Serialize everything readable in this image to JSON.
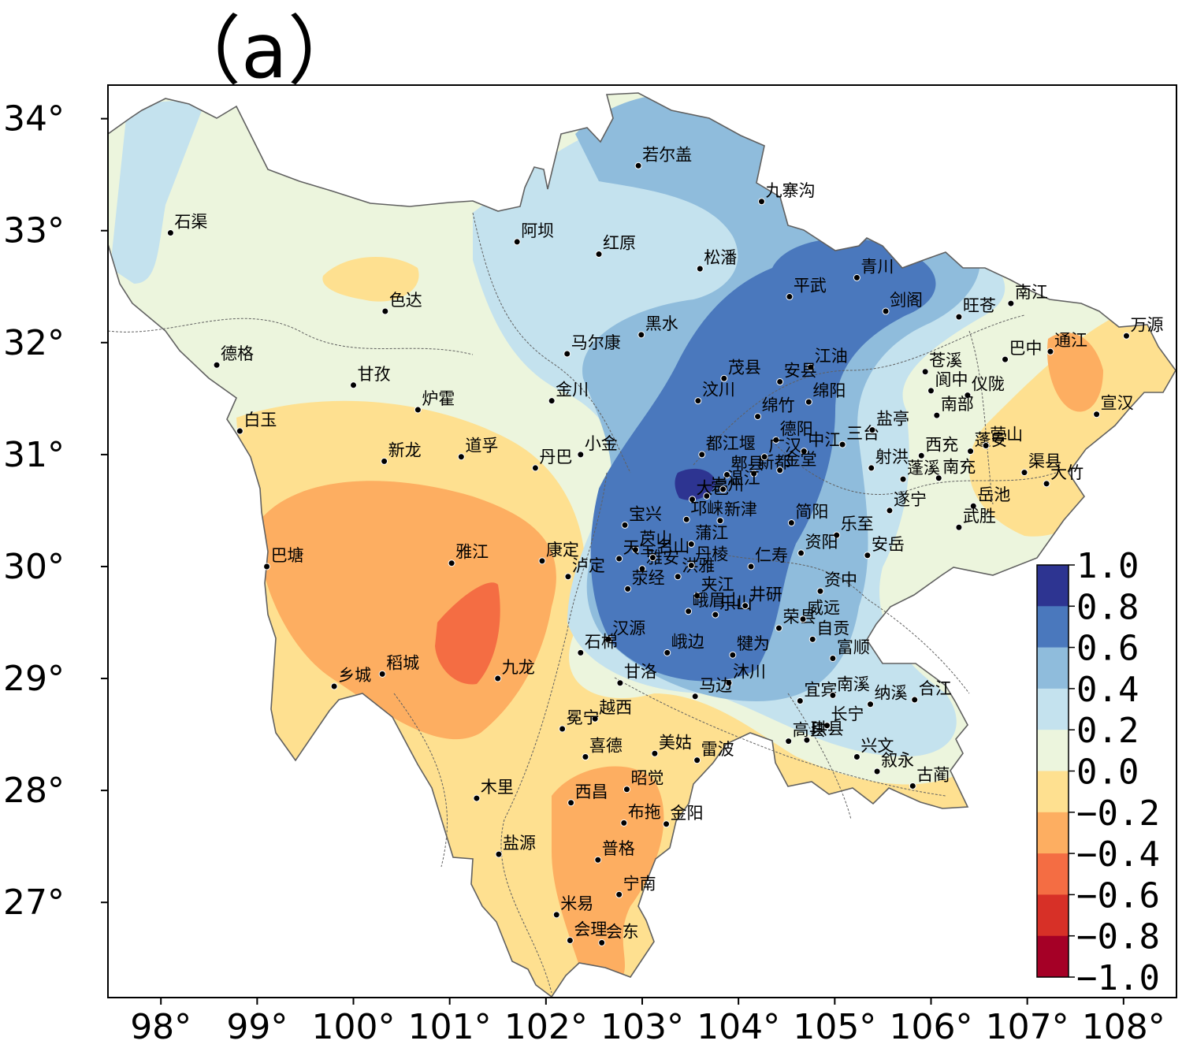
{
  "title": "（a）",
  "colors": {
    "c_m10": "#a50026",
    "c_m08": "#d73027",
    "c_m06": "#f46d43",
    "c_m04": "#fdae61",
    "c_m02": "#fee090",
    "c_00": "#ecf5dd",
    "c_02": "#c4e2ee",
    "c_04": "#8fbcdc",
    "c_06": "#4a78bd",
    "c_08": "#2d3491",
    "border": "#606060"
  },
  "map": {
    "lon_ticks": [
      "98°",
      "99°",
      "100°",
      "101°",
      "102°",
      "103°",
      "104°",
      "105°",
      "106°",
      "107°",
      "108°"
    ],
    "lat_ticks": [
      "34°",
      "33°",
      "32°",
      "31°",
      "30°",
      "29°",
      "28°",
      "27°"
    ],
    "lon_range": [
      97.45,
      108.55
    ],
    "lat_range": [
      26.15,
      34.3
    ]
  },
  "colorbar": {
    "labels": [
      "1.0",
      "0.8",
      "0.6",
      "0.4",
      "0.2",
      "0.0",
      "−0.2",
      "−0.4",
      "−0.6",
      "−0.8",
      "−1.0"
    ]
  },
  "stations": [
    {
      "name": "石渠",
      "lon": 98.1,
      "lat": 32.98
    },
    {
      "name": "德格",
      "lon": 98.58,
      "lat": 31.8
    },
    {
      "name": "色达",
      "lon": 100.33,
      "lat": 32.28
    },
    {
      "name": "甘孜",
      "lon": 100.0,
      "lat": 31.62
    },
    {
      "name": "炉霍",
      "lon": 100.67,
      "lat": 31.4
    },
    {
      "name": "白玉",
      "lon": 98.82,
      "lat": 31.21
    },
    {
      "name": "新龙",
      "lon": 100.32,
      "lat": 30.94
    },
    {
      "name": "道孚",
      "lon": 101.12,
      "lat": 30.98
    },
    {
      "name": "巴塘",
      "lon": 99.1,
      "lat": 30.0
    },
    {
      "name": "雅江",
      "lon": 101.02,
      "lat": 30.03
    },
    {
      "name": "乡城",
      "lon": 99.8,
      "lat": 28.93
    },
    {
      "name": "稻城",
      "lon": 100.3,
      "lat": 29.04
    },
    {
      "name": "九龙",
      "lon": 101.5,
      "lat": 29.0
    },
    {
      "name": "若尔盖",
      "lon": 102.96,
      "lat": 33.58
    },
    {
      "name": "九寨沟",
      "lon": 104.24,
      "lat": 33.26
    },
    {
      "name": "阿坝",
      "lon": 101.7,
      "lat": 32.9
    },
    {
      "name": "红原",
      "lon": 102.55,
      "lat": 32.79
    },
    {
      "name": "松潘",
      "lon": 103.6,
      "lat": 32.66
    },
    {
      "name": "黑水",
      "lon": 102.99,
      "lat": 32.07
    },
    {
      "name": "马尔康",
      "lon": 102.22,
      "lat": 31.9
    },
    {
      "name": "金川",
      "lon": 102.06,
      "lat": 31.48
    },
    {
      "name": "小金",
      "lon": 102.36,
      "lat": 31.0
    },
    {
      "name": "丹巴",
      "lon": 101.89,
      "lat": 30.88
    },
    {
      "name": "茂县",
      "lon": 103.85,
      "lat": 31.68
    },
    {
      "name": "汶川",
      "lon": 103.58,
      "lat": 31.48
    },
    {
      "name": "平武",
      "lon": 104.53,
      "lat": 32.41
    },
    {
      "name": "青川",
      "lon": 105.23,
      "lat": 32.58
    },
    {
      "name": "剑阁",
      "lon": 105.53,
      "lat": 32.28
    },
    {
      "name": "旺苍",
      "lon": 106.29,
      "lat": 32.23
    },
    {
      "name": "南江",
      "lon": 106.83,
      "lat": 32.35
    },
    {
      "name": "江油",
      "lon": 104.75,
      "lat": 31.78
    },
    {
      "name": "安县",
      "lon": 104.43,
      "lat": 31.65
    },
    {
      "name": "绵阳",
      "lon": 104.73,
      "lat": 31.47
    },
    {
      "name": "绵竹",
      "lon": 104.2,
      "lat": 31.34
    },
    {
      "name": "德阳",
      "lon": 104.39,
      "lat": 31.13
    },
    {
      "name": "都江堰",
      "lon": 103.62,
      "lat": 31.0
    },
    {
      "name": "郫县",
      "lon": 103.88,
      "lat": 30.82
    },
    {
      "name": "新都",
      "lon": 104.16,
      "lat": 30.83
    },
    {
      "name": "广汉",
      "lon": 104.27,
      "lat": 30.98
    },
    {
      "name": "中江",
      "lon": 104.68,
      "lat": 31.03
    },
    {
      "name": "金堂",
      "lon": 104.43,
      "lat": 30.86
    },
    {
      "name": "三台",
      "lon": 105.08,
      "lat": 31.09
    },
    {
      "name": "盐亭",
      "lon": 105.39,
      "lat": 31.22
    },
    {
      "name": "射洪",
      "lon": 105.38,
      "lat": 30.88
    },
    {
      "name": "苍溪",
      "lon": 105.94,
      "lat": 31.74
    },
    {
      "name": "阆中",
      "lon": 106.0,
      "lat": 31.57
    },
    {
      "name": "仪陇",
      "lon": 106.38,
      "lat": 31.53
    },
    {
      "name": "巴中",
      "lon": 106.77,
      "lat": 31.85
    },
    {
      "name": "通江",
      "lon": 107.24,
      "lat": 31.92
    },
    {
      "name": "万源",
      "lon": 108.03,
      "lat": 32.06
    },
    {
      "name": "宣汉",
      "lon": 107.72,
      "lat": 31.36
    },
    {
      "name": "南部",
      "lon": 106.06,
      "lat": 31.35
    },
    {
      "name": "西充",
      "lon": 105.9,
      "lat": 30.99
    },
    {
      "name": "蓬安",
      "lon": 106.41,
      "lat": 31.03
    },
    {
      "name": "营山",
      "lon": 106.57,
      "lat": 31.08
    },
    {
      "name": "渠县",
      "lon": 106.97,
      "lat": 30.84
    },
    {
      "name": "大竹",
      "lon": 107.2,
      "lat": 30.74
    },
    {
      "name": "蓬溪",
      "lon": 105.71,
      "lat": 30.78
    },
    {
      "name": "南充",
      "lon": 106.08,
      "lat": 30.79
    },
    {
      "name": "遂宁",
      "lon": 105.57,
      "lat": 30.5
    },
    {
      "name": "岳池",
      "lon": 106.44,
      "lat": 30.54
    },
    {
      "name": "武胜",
      "lon": 106.29,
      "lat": 30.35
    },
    {
      "name": "大邑",
      "lon": 103.52,
      "lat": 30.6
    },
    {
      "name": "崇州",
      "lon": 103.67,
      "lat": 30.63
    },
    {
      "name": "温江",
      "lon": 103.84,
      "lat": 30.69
    },
    {
      "name": "邛崃",
      "lon": 103.46,
      "lat": 30.42
    },
    {
      "name": "新津",
      "lon": 103.81,
      "lat": 30.41
    },
    {
      "name": "简阳",
      "lon": 104.55,
      "lat": 30.39
    },
    {
      "name": "乐至",
      "lon": 105.02,
      "lat": 30.28
    },
    {
      "name": "安岳",
      "lon": 105.34,
      "lat": 30.1
    },
    {
      "name": "宝兴",
      "lon": 102.82,
      "lat": 30.37
    },
    {
      "name": "芦山",
      "lon": 102.93,
      "lat": 30.15
    },
    {
      "name": "蒲江",
      "lon": 103.51,
      "lat": 30.2
    },
    {
      "name": "天全",
      "lon": 102.76,
      "lat": 30.07
    },
    {
      "name": "雅安",
      "lon": 103.0,
      "lat": 29.98
    },
    {
      "name": "名山",
      "lon": 103.11,
      "lat": 30.08
    },
    {
      "name": "洪雅",
      "lon": 103.37,
      "lat": 29.91
    },
    {
      "name": "荥经",
      "lon": 102.85,
      "lat": 29.8
    },
    {
      "name": "仁寿",
      "lon": 104.13,
      "lat": 30.0
    },
    {
      "name": "资阳",
      "lon": 104.65,
      "lat": 30.12
    },
    {
      "name": "资中",
      "lon": 104.85,
      "lat": 29.78
    },
    {
      "name": "康定",
      "lon": 101.96,
      "lat": 30.05
    },
    {
      "name": "泸定",
      "lon": 102.23,
      "lat": 29.91
    },
    {
      "name": "丹棱",
      "lon": 103.51,
      "lat": 30.01
    },
    {
      "name": "夹江",
      "lon": 103.57,
      "lat": 29.74
    },
    {
      "name": "峨眉山",
      "lon": 103.48,
      "lat": 29.6
    },
    {
      "name": "乐山",
      "lon": 103.76,
      "lat": 29.57
    },
    {
      "name": "井研",
      "lon": 104.07,
      "lat": 29.65
    },
    {
      "name": "汉源",
      "lon": 102.65,
      "lat": 29.35
    },
    {
      "name": "石棉",
      "lon": 102.36,
      "lat": 29.23
    },
    {
      "name": "峨边",
      "lon": 103.26,
      "lat": 29.23
    },
    {
      "name": "犍为",
      "lon": 103.94,
      "lat": 29.21
    },
    {
      "name": "沐川",
      "lon": 103.9,
      "lat": 28.96
    },
    {
      "name": "马边",
      "lon": 103.55,
      "lat": 28.84
    },
    {
      "name": "荣县",
      "lon": 104.42,
      "lat": 29.45
    },
    {
      "name": "威远",
      "lon": 104.67,
      "lat": 29.53
    },
    {
      "name": "自贡",
      "lon": 104.77,
      "lat": 29.35
    },
    {
      "name": "富顺",
      "lon": 104.98,
      "lat": 29.18
    },
    {
      "name": "甘洛",
      "lon": 102.77,
      "lat": 28.96
    },
    {
      "name": "越西",
      "lon": 102.51,
      "lat": 28.64
    },
    {
      "name": "冕宁",
      "lon": 102.17,
      "lat": 28.55
    },
    {
      "name": "宜宾",
      "lon": 104.64,
      "lat": 28.8
    },
    {
      "name": "南溪",
      "lon": 104.98,
      "lat": 28.85
    },
    {
      "name": "长宁",
      "lon": 104.92,
      "lat": 28.58
    },
    {
      "name": "纳溪",
      "lon": 105.37,
      "lat": 28.77
    },
    {
      "name": "合江",
      "lon": 105.83,
      "lat": 28.81
    },
    {
      "name": "高县",
      "lon": 104.52,
      "lat": 28.44
    },
    {
      "name": "珙县",
      "lon": 104.71,
      "lat": 28.45
    },
    {
      "name": "兴文",
      "lon": 105.23,
      "lat": 28.3
    },
    {
      "name": "叙永",
      "lon": 105.44,
      "lat": 28.17
    },
    {
      "name": "古蔺",
      "lon": 105.81,
      "lat": 28.04
    },
    {
      "name": "美姑",
      "lon": 103.13,
      "lat": 28.33
    },
    {
      "name": "雷波",
      "lon": 103.57,
      "lat": 28.27
    },
    {
      "name": "喜德",
      "lon": 102.41,
      "lat": 28.3
    },
    {
      "name": "昭觉",
      "lon": 102.84,
      "lat": 28.01
    },
    {
      "name": "西昌",
      "lon": 102.26,
      "lat": 27.89
    },
    {
      "name": "布拖",
      "lon": 102.81,
      "lat": 27.71
    },
    {
      "name": "金阳",
      "lon": 103.25,
      "lat": 27.7
    },
    {
      "name": "木里",
      "lon": 101.28,
      "lat": 27.93
    },
    {
      "name": "盐源",
      "lon": 101.51,
      "lat": 27.43
    },
    {
      "name": "普格",
      "lon": 102.54,
      "lat": 27.38
    },
    {
      "name": "宁南",
      "lon": 102.76,
      "lat": 27.07
    },
    {
      "name": "米易",
      "lon": 102.11,
      "lat": 26.89
    },
    {
      "name": "会理",
      "lon": 102.25,
      "lat": 26.66
    },
    {
      "name": "会东",
      "lon": 102.58,
      "lat": 26.64
    }
  ]
}
